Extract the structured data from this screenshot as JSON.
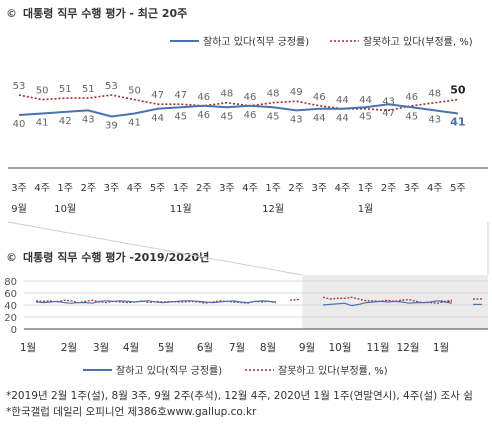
{
  "chart_data": [
    {
      "type": "line",
      "title": "대통령 직무 수행 평가 - 최근 20주",
      "title_marker": "©",
      "legend_placement": "top-right",
      "x_ticks": [
        {
          "week": "3주",
          "month": "9월"
        },
        {
          "week": "4주",
          "month": ""
        },
        {
          "week": "1주",
          "month": "10월"
        },
        {
          "week": "2주",
          "month": ""
        },
        {
          "week": "3주",
          "month": ""
        },
        {
          "week": "4주",
          "month": ""
        },
        {
          "week": "5주",
          "month": ""
        },
        {
          "week": "1주",
          "month": "11월"
        },
        {
          "week": "2주",
          "month": ""
        },
        {
          "week": "3주",
          "month": ""
        },
        {
          "week": "4주",
          "month": ""
        },
        {
          "week": "1주",
          "month": "12월"
        },
        {
          "week": "2주",
          "month": ""
        },
        {
          "week": "3주",
          "month": ""
        },
        {
          "week": "4주",
          "month": ""
        },
        {
          "week": "1주",
          "month": "1월"
        },
        {
          "week": "2주",
          "month": ""
        },
        {
          "week": "3주",
          "month": ""
        },
        {
          "week": "4주",
          "month": ""
        },
        {
          "week": "5주",
          "month": ""
        }
      ],
      "series": [
        {
          "name": "잘하고 있다(직무 긍정률)",
          "color": "#4a72b0",
          "style": "solid",
          "values": [
            40,
            41,
            42,
            43,
            39,
            41,
            44,
            45,
            46,
            45,
            46,
            45,
            43,
            44,
            44,
            45,
            47,
            45,
            43,
            41
          ]
        },
        {
          "name": "잘못하고 있다(부정률, %)",
          "color": "#a52a2a",
          "style": "dotted",
          "values": [
            53,
            50,
            51,
            51,
            53,
            50,
            47,
            47,
            46,
            48,
            46,
            48,
            49,
            46,
            44,
            44,
            43,
            46,
            48,
            50
          ]
        }
      ],
      "ylim": [
        30,
        60
      ]
    },
    {
      "type": "line",
      "title": "대통령 직무 수행 평가 -2019/2020년",
      "title_marker": "©",
      "y_ticks": [
        0,
        20,
        40,
        60,
        80
      ],
      "ylim": [
        0,
        90
      ],
      "grid": true,
      "highlight_range": [
        0.6,
        1.0
      ],
      "x_ticks": [
        "1월",
        "2월",
        "3월",
        "4월",
        "5월",
        "6월",
        "7월",
        "8월",
        "9월",
        "10월",
        "11월",
        "12월",
        "1월"
      ],
      "legend_placement": "bottom",
      "series": [
        {
          "name": "잘하고 있다(직무 긍정률)",
          "color": "#4a72b0",
          "style": "solid",
          "segments": [
            [
              45,
              44,
              45,
              46,
              44,
              43,
              44,
              44,
              43,
              46,
              47,
              46,
              47,
              46,
              45,
              46,
              47,
              45,
              44,
              45,
              46,
              47,
              47,
              46,
              45,
              44,
              45,
              46,
              47,
              45,
              44,
              46,
              47,
              46,
              45
            ],
            [
              40,
              41,
              42,
              43,
              39,
              41,
              44,
              45,
              46,
              45,
              46,
              45,
              43,
              44,
              44,
              45,
              47,
              45,
              43
            ],
            [
              41,
              41
            ]
          ]
        },
        {
          "name": "잘못하고 있다(부정률, %)",
          "color": "#a52a2a",
          "style": "dotted",
          "segments": [
            [
              47,
              46,
              47,
              45,
              48,
              47,
              44,
              46,
              48,
              45,
              44,
              46,
              45,
              44,
              45,
              47,
              44,
              46,
              45,
              46,
              45,
              45,
              46,
              45,
              43,
              45,
              47,
              46,
              45,
              44,
              43,
              46,
              45,
              46,
              44
            ],
            [
              48,
              49
            ],
            [
              53,
              50,
              51,
              51,
              53,
              50,
              47,
              47,
              46,
              48,
              46,
              48,
              49,
              46,
              44,
              44,
              43,
              46,
              48
            ],
            [
              47,
              45,
              46
            ],
            [
              50,
              50
            ]
          ]
        }
      ]
    }
  ],
  "legend": {
    "positive": "잘하고 있다(직무 긍정률)",
    "negative": "잘못하고 있다(부정률, %)"
  },
  "notes": [
    "*2019년 2월 1주(설), 8월 3주, 9월 2주(추석), 12월 4주, 2020년 1월 1주(연말연시), 4주(설) 조사 쉼",
    "*한국갤럽 데일리 오피니언 제386호www.gallup.co.kr"
  ]
}
